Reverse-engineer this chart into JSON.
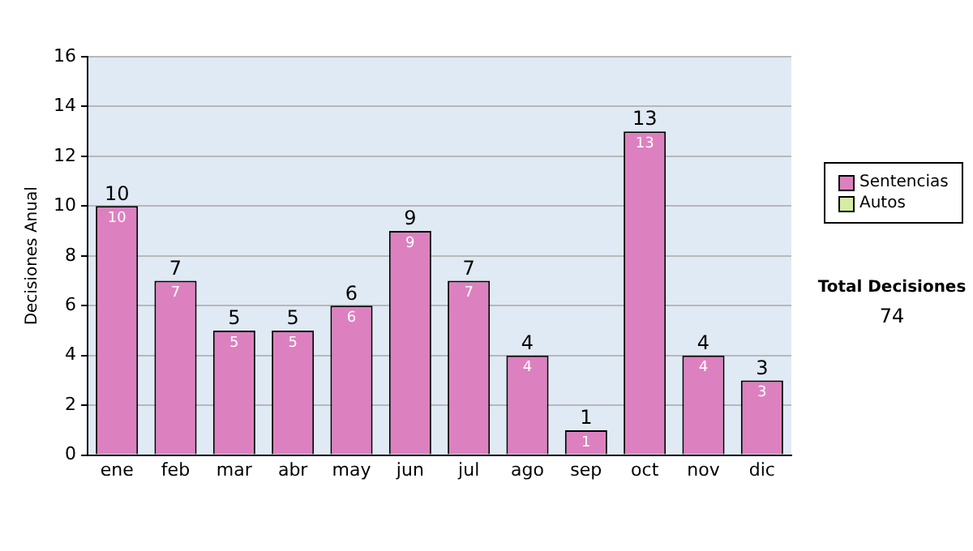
{
  "chart_data": {
    "type": "bar",
    "ylabel": "Decisiones Anual",
    "categories": [
      "ene",
      "feb",
      "mar",
      "abr",
      "may",
      "jun",
      "jul",
      "ago",
      "sep",
      "oct",
      "nov",
      "dic"
    ],
    "series": [
      {
        "name": "Sentencias",
        "color": "#dd80c0",
        "values": [
          10,
          7,
          5,
          5,
          6,
          9,
          7,
          4,
          1,
          13,
          4,
          3
        ],
        "value_labels": [
          "10",
          "7",
          "5",
          "5",
          "6",
          "9",
          "7",
          "4",
          "1",
          "13",
          "4",
          "3"
        ]
      },
      {
        "name": "Autos",
        "color": "#d4eca4",
        "values": [
          0,
          0,
          0,
          0,
          0,
          0,
          0,
          0,
          0,
          0,
          0,
          0
        ],
        "value_labels": [
          null,
          null,
          null,
          null,
          null,
          null,
          null,
          null,
          null,
          null,
          null,
          null
        ]
      }
    ],
    "stacked": true,
    "ylim": [
      0,
      16
    ],
    "yticks": [
      0,
      2,
      4,
      6,
      8,
      10,
      12,
      14,
      16
    ],
    "grid": "y",
    "legend": "right",
    "totals": [
      "10",
      "7",
      "5",
      "5",
      "6",
      "9",
      "7",
      "4",
      "1",
      "13",
      "4",
      "3"
    ],
    "annotations": [
      "Total Decisiones",
      "74"
    ]
  }
}
